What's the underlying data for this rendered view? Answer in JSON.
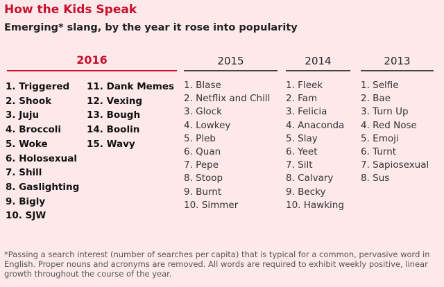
{
  "title": "How the Kids Speak",
  "subtitle": "Emerging* slang, by the year it rose into popularity",
  "columns": [
    {
      "year": "2016",
      "items": [
        "1. Triggered",
        "2. Shook",
        "3. Juju",
        "4. Broccoli",
        "5. Woke",
        "6. Holosexual",
        "7. Shill",
        "8. Gaslighting",
        "9. Bigly",
        "10. SJW",
        "11. Dank Memes",
        "12. Vexing",
        "13. Bough",
        "14. Boolin",
        "15. Wavy"
      ]
    },
    {
      "year": "2015",
      "items": [
        "1. Blase",
        "2. Netflix and Chill",
        "3. Glock",
        "4. Lowkey",
        "5. Pleb",
        "6. Quan",
        "7. Pepe",
        "8. Stoop",
        "9. Burnt",
        "10. Simmer"
      ]
    },
    {
      "year": "2014",
      "items": [
        "1. Fleek",
        "2. Fam",
        "3. Felicia",
        "4. Anaconda",
        "5. Slay",
        "6. Yeet",
        "7. Silt",
        "8. Calvary",
        "9. Becky",
        "10. Hawking"
      ]
    },
    {
      "year": "2013",
      "items": [
        "1. Selfie",
        "2. Bae",
        "3. Turn Up",
        "4. Red Nose",
        "5. Emoji",
        "6. Turnt",
        "7. Sapiosexual",
        "8. Sus"
      ]
    }
  ],
  "footnote": "*Passing a search interest (number of searches per capita) that is typical for a common, pervasive word in English. Proper nouns and acronyms are removed. All words are required to exhibit weekly positive, linear growth throughout the course of the year."
}
